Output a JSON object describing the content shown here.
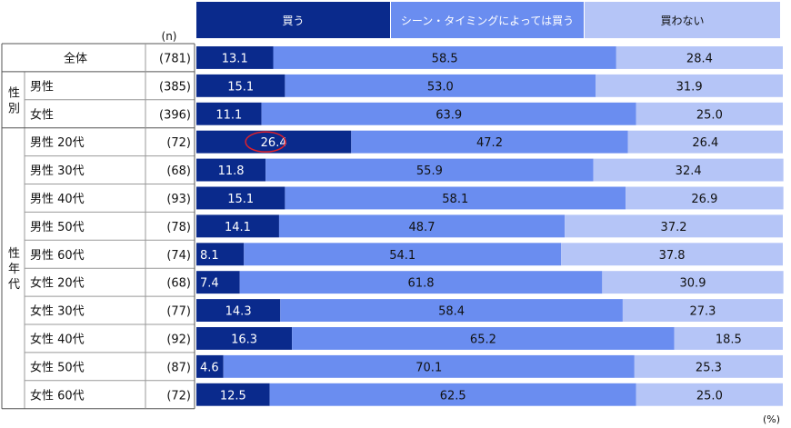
{
  "chart_data": {
    "type": "bar",
    "orientation": "horizontal",
    "stacked": true,
    "n_header": "(n)",
    "unit": "(%)",
    "series": [
      {
        "name": "買う",
        "color": "#0a2a8c"
      },
      {
        "name": "シーン・タイミングによっては買う",
        "color": "#6a8df0"
      },
      {
        "name": "買わない",
        "color": "#b5c5f7"
      }
    ],
    "groups": [
      {
        "label": "",
        "rows": [
          0
        ]
      },
      {
        "label": "性別",
        "rows": [
          1,
          2
        ]
      },
      {
        "label": "性年代",
        "rows": [
          3,
          4,
          5,
          6,
          7,
          8,
          9,
          10,
          11,
          12
        ]
      }
    ],
    "rows": [
      {
        "label": "全体",
        "n": "(781)",
        "values": [
          13.1,
          58.5,
          28.4
        ]
      },
      {
        "label": "男性",
        "n": "(385)",
        "values": [
          15.1,
          53.0,
          31.9
        ]
      },
      {
        "label": "女性",
        "n": "(396)",
        "values": [
          11.1,
          63.9,
          25.0
        ]
      },
      {
        "label": "男性 20代",
        "n": "(72)",
        "values": [
          26.4,
          47.2,
          26.4
        ],
        "highlight": true
      },
      {
        "label": "男性 30代",
        "n": "(68)",
        "values": [
          11.8,
          55.9,
          32.4
        ]
      },
      {
        "label": "男性 40代",
        "n": "(93)",
        "values": [
          15.1,
          58.1,
          26.9
        ]
      },
      {
        "label": "男性 50代",
        "n": "(78)",
        "values": [
          14.1,
          48.7,
          37.2
        ]
      },
      {
        "label": "男性 60代",
        "n": "(74)",
        "values": [
          8.1,
          54.1,
          37.8
        ]
      },
      {
        "label": "女性 20代",
        "n": "(68)",
        "values": [
          7.4,
          61.8,
          30.9
        ]
      },
      {
        "label": "女性 30代",
        "n": "(77)",
        "values": [
          14.3,
          58.4,
          27.3
        ]
      },
      {
        "label": "女性 40代",
        "n": "(92)",
        "values": [
          16.3,
          65.2,
          18.5
        ]
      },
      {
        "label": "女性 50代",
        "n": "(87)",
        "values": [
          4.6,
          70.1,
          25.3
        ]
      },
      {
        "label": "女性 60代",
        "n": "(72)",
        "values": [
          12.5,
          62.5,
          25.0
        ]
      }
    ],
    "highlight_color": "#e0202a"
  }
}
